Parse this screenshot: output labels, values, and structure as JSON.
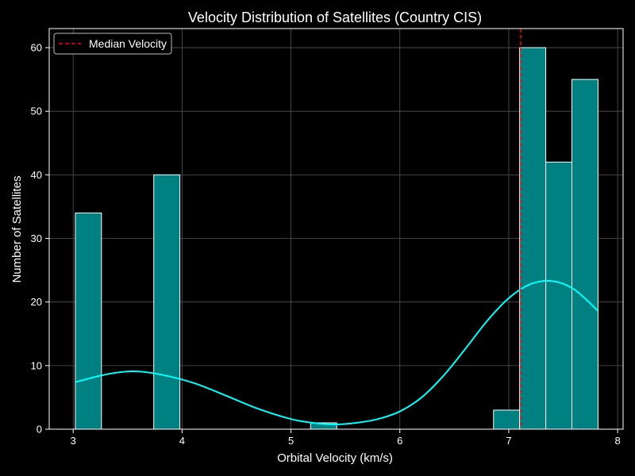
{
  "chart_data": {
    "type": "bar",
    "title": "Velocity Distribution of Satellites (Country CIS)",
    "xlabel": "Orbital Velocity (km/s)",
    "ylabel": "Number of Satellites",
    "xlim": [
      2.78,
      8.05
    ],
    "ylim": [
      0,
      63
    ],
    "xticks": [
      3,
      4,
      5,
      6,
      7,
      8
    ],
    "yticks": [
      0,
      10,
      20,
      30,
      40,
      50,
      60
    ],
    "grid": true,
    "legend": {
      "position": "top-left",
      "entries": [
        "Median Velocity"
      ]
    },
    "bins": [
      {
        "x0": 3.02,
        "x1": 3.26,
        "count": 34
      },
      {
        "x0": 3.26,
        "x1": 3.5,
        "count": 0
      },
      {
        "x0": 3.5,
        "x1": 3.74,
        "count": 0
      },
      {
        "x0": 3.74,
        "x1": 3.98,
        "count": 40
      },
      {
        "x0": 3.98,
        "x1": 4.22,
        "count": 0
      },
      {
        "x0": 4.22,
        "x1": 4.46,
        "count": 0
      },
      {
        "x0": 4.46,
        "x1": 4.7,
        "count": 0
      },
      {
        "x0": 4.7,
        "x1": 4.94,
        "count": 0
      },
      {
        "x0": 4.94,
        "x1": 5.18,
        "count": 0
      },
      {
        "x0": 5.18,
        "x1": 5.42,
        "count": 1
      },
      {
        "x0": 5.42,
        "x1": 5.66,
        "count": 0
      },
      {
        "x0": 5.66,
        "x1": 5.9,
        "count": 0
      },
      {
        "x0": 5.9,
        "x1": 6.14,
        "count": 0
      },
      {
        "x0": 6.14,
        "x1": 6.38,
        "count": 0
      },
      {
        "x0": 6.38,
        "x1": 6.62,
        "count": 0
      },
      {
        "x0": 6.62,
        "x1": 6.86,
        "count": 0
      },
      {
        "x0": 6.86,
        "x1": 7.1,
        "count": 3
      },
      {
        "x0": 7.1,
        "x1": 7.34,
        "count": 60
      },
      {
        "x0": 7.34,
        "x1": 7.58,
        "count": 42
      },
      {
        "x0": 7.58,
        "x1": 7.82,
        "count": 55
      }
    ],
    "median_velocity": 7.11,
    "kde": {
      "x": [
        3.02,
        3.3,
        3.55,
        3.8,
        4.1,
        4.4,
        4.7,
        5.0,
        5.2,
        5.4,
        5.6,
        5.8,
        6.0,
        6.2,
        6.4,
        6.6,
        6.8,
        7.0,
        7.2,
        7.4,
        7.6,
        7.82
      ],
      "y": [
        7.4,
        8.6,
        9.1,
        8.6,
        7.3,
        5.3,
        3.2,
        1.6,
        1.0,
        0.75,
        1.0,
        1.6,
        2.8,
        5.0,
        8.4,
        12.6,
        17.0,
        20.6,
        22.8,
        23.3,
        22.0,
        18.6
      ]
    },
    "colors": {
      "bar_fill": "#008080",
      "bar_edge": "#ffffff",
      "kde_line": "#00ffff",
      "median_line": "#ff0000",
      "grid": "#555555",
      "axes": "#ffffff",
      "background": "#000000"
    }
  }
}
